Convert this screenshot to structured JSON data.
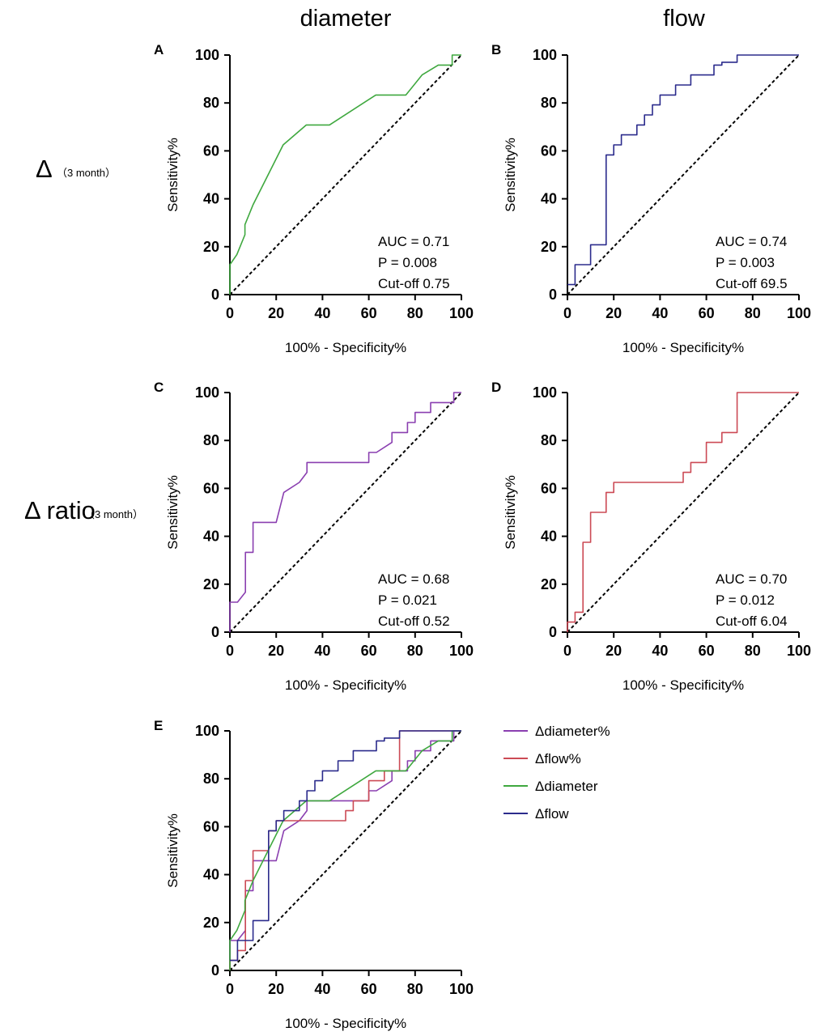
{
  "figure": {
    "column_titles": [
      "diameter",
      "flow"
    ],
    "row_titles": [
      {
        "symbol": "Δ",
        "sub": "（3 month）"
      },
      {
        "symbol": "Δ ratio",
        "sub": "（3 month）"
      }
    ]
  },
  "colors": {
    "delta_diameter": "#3fa83f",
    "delta_flow": "#2b2b8c",
    "delta_diameter_pct": "#8a3fb0",
    "delta_flow_pct": "#cc4a55",
    "reference": "#000000"
  },
  "chart_data": [
    {
      "type": "line",
      "panel": "A",
      "xlabel": "100% - Specificity%",
      "ylabel": "Sensitivity%",
      "xlim": [
        0,
        100
      ],
      "ylim": [
        0,
        100
      ],
      "xticks": [
        0,
        20,
        40,
        60,
        80,
        100
      ],
      "yticks": [
        0,
        20,
        40,
        60,
        80,
        100
      ],
      "reference_line": [
        [
          0,
          0
        ],
        [
          100,
          100
        ]
      ],
      "annotations": [
        "AUC = 0.71",
        "P = 0.008",
        "Cut-off 0.75"
      ],
      "series": [
        {
          "name": "Δdiameter",
          "color_key": "delta_diameter",
          "x": [
            0,
            0,
            3,
            6.5,
            6.5,
            10,
            23,
            33,
            43,
            63,
            76,
            83,
            90,
            96,
            96,
            100
          ],
          "y": [
            0,
            12.5,
            16.7,
            25,
            29.2,
            37.5,
            62.5,
            70.8,
            70.8,
            83.3,
            83.3,
            91.7,
            95.8,
            95.8,
            100,
            100
          ]
        }
      ]
    },
    {
      "type": "line",
      "panel": "B",
      "xlabel": "100% - Specificity%",
      "ylabel": "Sensitivity%",
      "xlim": [
        0,
        100
      ],
      "ylim": [
        0,
        100
      ],
      "xticks": [
        0,
        20,
        40,
        60,
        80,
        100
      ],
      "yticks": [
        0,
        20,
        40,
        60,
        80,
        100
      ],
      "reference_line": [
        [
          0,
          0
        ],
        [
          100,
          100
        ]
      ],
      "annotations": [
        "AUC = 0.74",
        "P = 0.003",
        "Cut-off 69.5"
      ],
      "series": [
        {
          "name": "Δflow",
          "color_key": "delta_flow",
          "x": [
            0,
            3.3,
            3.3,
            10,
            10,
            16.7,
            16.7,
            20,
            20,
            23.3,
            23.3,
            30,
            30,
            33.3,
            33.3,
            36.7,
            36.7,
            40,
            40,
            46.7,
            46.7,
            53.3,
            53.3,
            63.3,
            63.3,
            66.7,
            66.7,
            73.3,
            73.3,
            80,
            100
          ],
          "y": [
            4.2,
            4.2,
            12.5,
            12.5,
            20.8,
            20.8,
            58.3,
            58.3,
            62.5,
            62.5,
            66.7,
            66.7,
            70.8,
            70.8,
            75,
            75,
            79.2,
            79.2,
            83.3,
            83.3,
            87.5,
            87.5,
            91.7,
            91.7,
            95.8,
            95.8,
            97,
            97,
            100,
            100,
            100
          ]
        }
      ]
    },
    {
      "type": "line",
      "panel": "C",
      "xlabel": "100% - Specificity%",
      "ylabel": "Sensitivity%",
      "xlim": [
        0,
        100
      ],
      "ylim": [
        0,
        100
      ],
      "xticks": [
        0,
        20,
        40,
        60,
        80,
        100
      ],
      "yticks": [
        0,
        20,
        40,
        60,
        80,
        100
      ],
      "reference_line": [
        [
          0,
          0
        ],
        [
          100,
          100
        ]
      ],
      "annotations": [
        "AUC = 0.68",
        "P = 0.021",
        "Cut-off 0.52"
      ],
      "series": [
        {
          "name": "Δdiameter%",
          "color_key": "delta_diameter_pct",
          "x": [
            0,
            0,
            3.3,
            6.7,
            6.7,
            10,
            10,
            20,
            23.3,
            23.3,
            30,
            33.3,
            33.3,
            60,
            60,
            63.3,
            70,
            70,
            73.3,
            76.7,
            76.7,
            80,
            80,
            86.7,
            86.7,
            93.3,
            96.7,
            96.7,
            100
          ],
          "y": [
            0,
            12.5,
            12.5,
            16.7,
            33.3,
            33.3,
            45.8,
            45.8,
            58.3,
            58.3,
            62.5,
            66.7,
            70.8,
            70.8,
            75,
            75,
            79.2,
            83.3,
            83.3,
            83.3,
            87.5,
            87.5,
            91.7,
            91.7,
            95.8,
            95.8,
            95.8,
            100,
            100
          ]
        }
      ]
    },
    {
      "type": "line",
      "panel": "D",
      "xlabel": "100% - Specificity%",
      "ylabel": "Sensitivity%",
      "xlim": [
        0,
        100
      ],
      "ylim": [
        0,
        100
      ],
      "xticks": [
        0,
        20,
        40,
        60,
        80,
        100
      ],
      "yticks": [
        0,
        20,
        40,
        60,
        80,
        100
      ],
      "reference_line": [
        [
          0,
          0
        ],
        [
          100,
          100
        ]
      ],
      "annotations": [
        "AUC = 0.70",
        "P = 0.012",
        "Cut-off 6.04"
      ],
      "series": [
        {
          "name": "Δflow%",
          "color_key": "delta_flow_pct",
          "x": [
            0,
            0,
            3.3,
            3.3,
            6.7,
            6.7,
            10,
            10,
            16.7,
            16.7,
            20,
            20,
            50,
            50,
            53.3,
            53.3,
            60,
            60,
            66.7,
            66.7,
            73.3,
            73.3,
            100
          ],
          "y": [
            0,
            4.2,
            4.2,
            8.3,
            8.3,
            37.5,
            37.5,
            50,
            50,
            58.3,
            58.3,
            62.5,
            62.5,
            66.7,
            66.7,
            70.8,
            70.8,
            79.2,
            79.2,
            83.3,
            83.3,
            100,
            100
          ]
        }
      ]
    },
    {
      "type": "line",
      "panel": "E",
      "xlabel": "100% - Specificity%",
      "ylabel": "Sensitivity%",
      "xlim": [
        0,
        100
      ],
      "ylim": [
        0,
        100
      ],
      "xticks": [
        0,
        20,
        40,
        60,
        80,
        100
      ],
      "yticks": [
        0,
        20,
        40,
        60,
        80,
        100
      ],
      "reference_line": [
        [
          0,
          0
        ],
        [
          100,
          100
        ]
      ],
      "annotations": [],
      "legend": [
        "Δdiameter%",
        "Δflow%",
        "Δdiameter",
        "Δflow"
      ],
      "legend_placement": "right",
      "series": [
        {
          "name": "Δdiameter%",
          "color_key": "delta_diameter_pct",
          "x": [
            0,
            0,
            3.3,
            6.7,
            6.7,
            10,
            10,
            20,
            23.3,
            23.3,
            30,
            33.3,
            33.3,
            60,
            60,
            63.3,
            70,
            70,
            73.3,
            76.7,
            76.7,
            80,
            80,
            86.7,
            86.7,
            93.3,
            96.7,
            96.7,
            100
          ],
          "y": [
            0,
            12.5,
            12.5,
            16.7,
            33.3,
            33.3,
            45.8,
            45.8,
            58.3,
            58.3,
            62.5,
            66.7,
            70.8,
            70.8,
            75,
            75,
            79.2,
            83.3,
            83.3,
            83.3,
            87.5,
            87.5,
            91.7,
            91.7,
            95.8,
            95.8,
            95.8,
            100,
            100
          ]
        },
        {
          "name": "Δflow%",
          "color_key": "delta_flow_pct",
          "x": [
            0,
            0,
            3.3,
            3.3,
            6.7,
            6.7,
            10,
            10,
            16.7,
            16.7,
            20,
            20,
            50,
            50,
            53.3,
            53.3,
            60,
            60,
            66.7,
            66.7,
            73.3,
            73.3,
            100
          ],
          "y": [
            0,
            4.2,
            4.2,
            8.3,
            8.3,
            37.5,
            37.5,
            50,
            50,
            58.3,
            58.3,
            62.5,
            62.5,
            66.7,
            66.7,
            70.8,
            70.8,
            79.2,
            79.2,
            83.3,
            83.3,
            100,
            100
          ]
        },
        {
          "name": "Δdiameter",
          "color_key": "delta_diameter",
          "x": [
            0,
            0,
            3,
            6.5,
            6.5,
            10,
            23,
            33,
            43,
            63,
            76,
            83,
            90,
            96,
            96,
            100
          ],
          "y": [
            0,
            12.5,
            16.7,
            25,
            29.2,
            37.5,
            62.5,
            70.8,
            70.8,
            83.3,
            83.3,
            91.7,
            95.8,
            95.8,
            100,
            100
          ]
        },
        {
          "name": "Δflow",
          "color_key": "delta_flow",
          "x": [
            0,
            3.3,
            3.3,
            10,
            10,
            16.7,
            16.7,
            20,
            20,
            23.3,
            23.3,
            30,
            30,
            33.3,
            33.3,
            36.7,
            36.7,
            40,
            40,
            46.7,
            46.7,
            53.3,
            53.3,
            63.3,
            63.3,
            66.7,
            66.7,
            73.3,
            73.3,
            80,
            100
          ],
          "y": [
            4.2,
            4.2,
            12.5,
            12.5,
            20.8,
            20.8,
            58.3,
            58.3,
            62.5,
            62.5,
            66.7,
            66.7,
            70.8,
            70.8,
            75,
            75,
            79.2,
            79.2,
            83.3,
            83.3,
            87.5,
            87.5,
            91.7,
            91.7,
            95.8,
            95.8,
            97,
            97,
            100,
            100,
            100
          ]
        }
      ]
    }
  ]
}
